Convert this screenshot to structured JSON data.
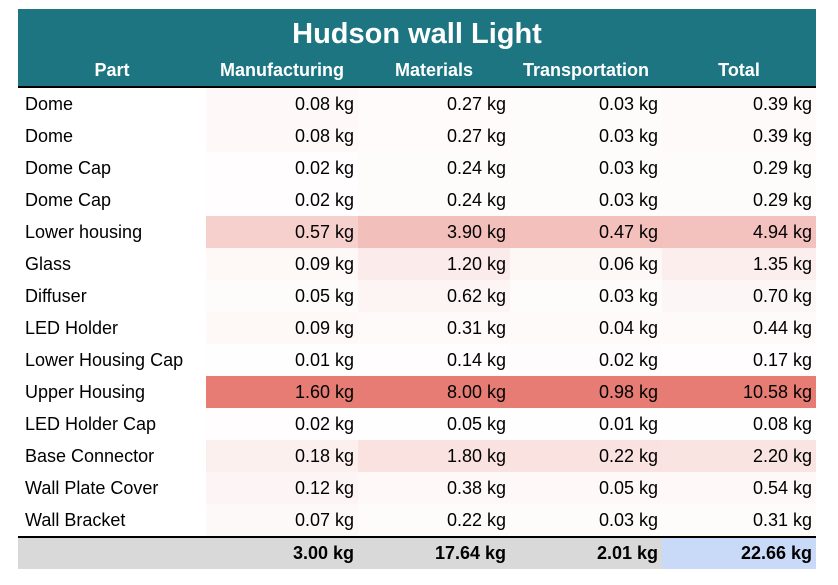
{
  "title": "Hudson wall Light",
  "headers": [
    "Part",
    "Manufacturing",
    "Materials",
    "Transportation",
    "Total"
  ],
  "heat_color": "#e67c73",
  "rows": [
    {
      "part": "Dome",
      "values": [
        "0.08 kg",
        "0.27 kg",
        "0.03 kg",
        "0.39 kg"
      ]
    },
    {
      "part": "Dome",
      "values": [
        "0.08 kg",
        "0.27 kg",
        "0.03 kg",
        "0.39 kg"
      ]
    },
    {
      "part": "Dome Cap",
      "values": [
        "0.02 kg",
        "0.24 kg",
        "0.03 kg",
        "0.29 kg"
      ]
    },
    {
      "part": "Dome Cap",
      "values": [
        "0.02 kg",
        "0.24 kg",
        "0.03 kg",
        "0.29 kg"
      ]
    },
    {
      "part": "Lower housing",
      "values": [
        "0.57 kg",
        "3.90 kg",
        "0.47 kg",
        "4.94 kg"
      ]
    },
    {
      "part": "Glass",
      "values": [
        "0.09 kg",
        "1.20 kg",
        "0.06 kg",
        "1.35 kg"
      ]
    },
    {
      "part": "Diffuser",
      "values": [
        "0.05 kg",
        "0.62 kg",
        "0.03 kg",
        "0.70 kg"
      ]
    },
    {
      "part": "LED Holder",
      "values": [
        "0.09 kg",
        "0.31 kg",
        "0.04 kg",
        "0.44 kg"
      ]
    },
    {
      "part": "Lower Housing Cap",
      "values": [
        "0.01 kg",
        "0.14 kg",
        "0.02 kg",
        "0.17 kg"
      ]
    },
    {
      "part": "Upper Housing",
      "values": [
        "1.60 kg",
        "8.00 kg",
        "0.98 kg",
        "10.58 kg"
      ]
    },
    {
      "part": "LED Holder Cap",
      "values": [
        "0.02 kg",
        "0.05 kg",
        "0.01 kg",
        "0.08 kg"
      ]
    },
    {
      "part": "Base Connector",
      "values": [
        "0.18 kg",
        "1.80 kg",
        "0.22 kg",
        "2.20 kg"
      ]
    },
    {
      "part": "Wall Plate Cover",
      "values": [
        "0.12 kg",
        "0.38 kg",
        "0.05 kg",
        "0.54 kg"
      ]
    },
    {
      "part": "Wall Bracket",
      "values": [
        "0.07 kg",
        "0.22 kg",
        "0.03 kg",
        "0.31 kg"
      ]
    }
  ],
  "totals": [
    "3.00 kg",
    "17.64 kg",
    "2.01 kg",
    "22.66 kg"
  ]
}
